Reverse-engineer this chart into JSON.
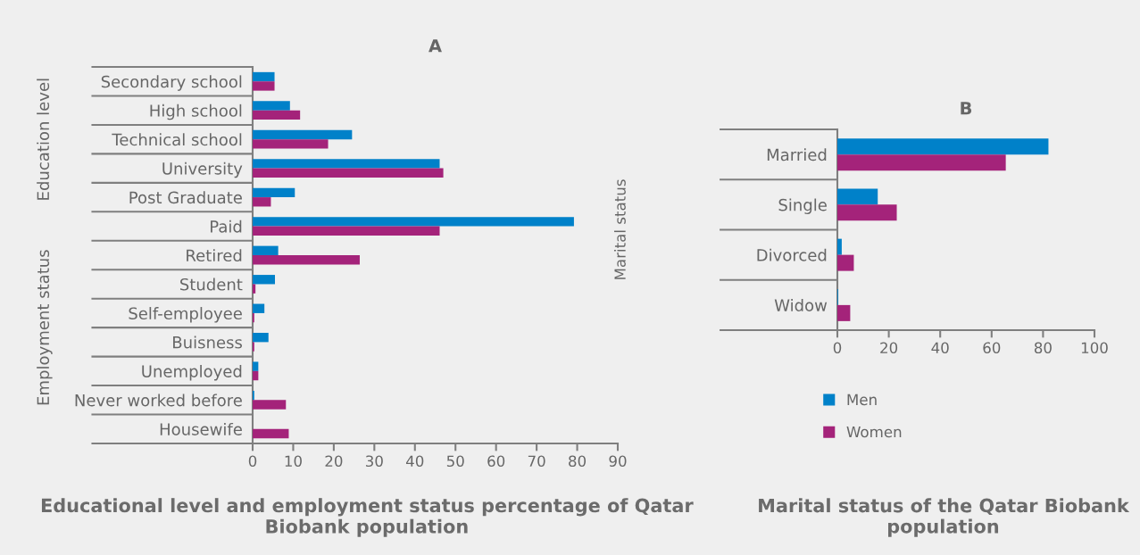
{
  "chart_data": [
    {
      "type": "bar",
      "orientation": "horizontal",
      "title": "A",
      "subtitle": "Educational level and employment status percentage of Qatar Biobank population",
      "categories": [
        "Secondary school",
        "High school",
        "Technical school",
        "University",
        "Post Graduate",
        "Paid",
        "Retired",
        "Student",
        "Self-employee",
        "Buisness",
        "Unemployed",
        "Never worked before",
        "Housewife"
      ],
      "series": [
        {
          "color": "#0081c9",
          "values": [
            5.4,
            9.2,
            24.5,
            46.1,
            10.4,
            79.2,
            6.3,
            5.5,
            2.9,
            3.9,
            1.4,
            0.4,
            0
          ]
        },
        {
          "color": "#a4237a",
          "values": [
            5.4,
            11.7,
            18.6,
            47.0,
            4.5,
            46.1,
            26.4,
            0.7,
            0.4,
            0.4,
            1.4,
            8.2,
            8.9
          ]
        }
      ],
      "xlim": [
        0,
        90
      ],
      "xticks": [
        0,
        10,
        20,
        30,
        40,
        50,
        60,
        70,
        80,
        90
      ],
      "annotations": [
        "Education level",
        "Employment status"
      ],
      "grid": false,
      "legend": false
    },
    {
      "type": "bar",
      "orientation": "horizontal",
      "title": "B",
      "subtitle": "Marital status of the Qatar Biobank population",
      "ylabel": "Marital status",
      "categories": [
        "Married",
        "Single",
        "Divorced",
        "Widow"
      ],
      "series": [
        {
          "name": "Men",
          "color": "#0081c9",
          "values": [
            82.1,
            15.7,
            1.7,
            0.3
          ]
        },
        {
          "name": "Women",
          "color": "#a4237a",
          "values": [
            65.5,
            23.1,
            6.4,
            5.0
          ]
        }
      ],
      "xlim": [
        0,
        100
      ],
      "xticks": [
        0,
        20,
        40,
        60,
        80,
        100
      ],
      "grid": false,
      "legend": "bottom"
    }
  ]
}
